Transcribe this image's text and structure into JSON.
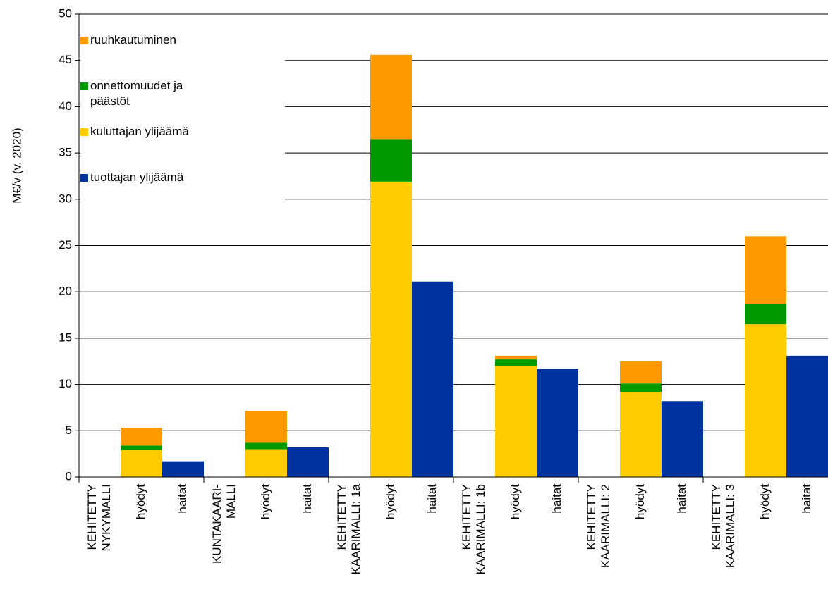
{
  "chart_data": {
    "type": "stacked-bar",
    "y_label": "M€/v (v. 2020)",
    "categories": [
      [
        "KEHITETTY",
        "NYKYMALLI"
      ],
      [
        "hyödyt"
      ],
      [
        "haitat"
      ],
      [
        "KUNTAKAARI-",
        "MALLI"
      ],
      [
        "hyödyt"
      ],
      [
        "haitat"
      ],
      [
        "KEHITETTY",
        "KAARIMALLI: 1a"
      ],
      [
        "hyödyt"
      ],
      [
        "haitat"
      ],
      [
        "KEHITETTY",
        "KAARIMALLI: 1b"
      ],
      [
        "hyödyt"
      ],
      [
        "haitat"
      ],
      [
        "KEHITETTY",
        "KAARIMALLI: 2"
      ],
      [
        "hyödyt"
      ],
      [
        "haitat"
      ],
      [
        "KEHITETTY",
        "KAARIMALLI: 3"
      ],
      [
        "hyödyt"
      ],
      [
        "haitat"
      ]
    ],
    "series": [
      {
        "name": "tuottajan ylijäämä",
        "color": "#0033a0",
        "values": [
          null,
          null,
          1.7,
          null,
          null,
          3.2,
          null,
          null,
          21.1,
          null,
          null,
          11.7,
          null,
          null,
          8.2,
          null,
          null,
          13.1
        ]
      },
      {
        "name": "kuluttajan ylijäämä",
        "color": "#ffcc00",
        "values": [
          null,
          2.9,
          null,
          null,
          3.0,
          null,
          null,
          31.9,
          null,
          null,
          12.0,
          null,
          null,
          9.2,
          null,
          null,
          16.5,
          null
        ]
      },
      {
        "name": "onnettomuudet ja päästöt",
        "color": "#009900",
        "values": [
          null,
          0.5,
          null,
          null,
          0.7,
          null,
          null,
          4.6,
          null,
          null,
          0.7,
          null,
          null,
          0.9,
          null,
          null,
          2.2,
          null
        ]
      },
      {
        "name": "ruuhkautuminen",
        "color": "#ff9900",
        "values": [
          null,
          1.9,
          null,
          null,
          3.4,
          null,
          null,
          9.1,
          null,
          null,
          0.4,
          null,
          null,
          2.4,
          null,
          null,
          7.3,
          null
        ]
      }
    ],
    "ylim": [
      0,
      50
    ],
    "yticks": [
      0,
      5,
      10,
      15,
      20,
      25,
      30,
      35,
      40,
      45,
      50
    ],
    "grid": true
  }
}
